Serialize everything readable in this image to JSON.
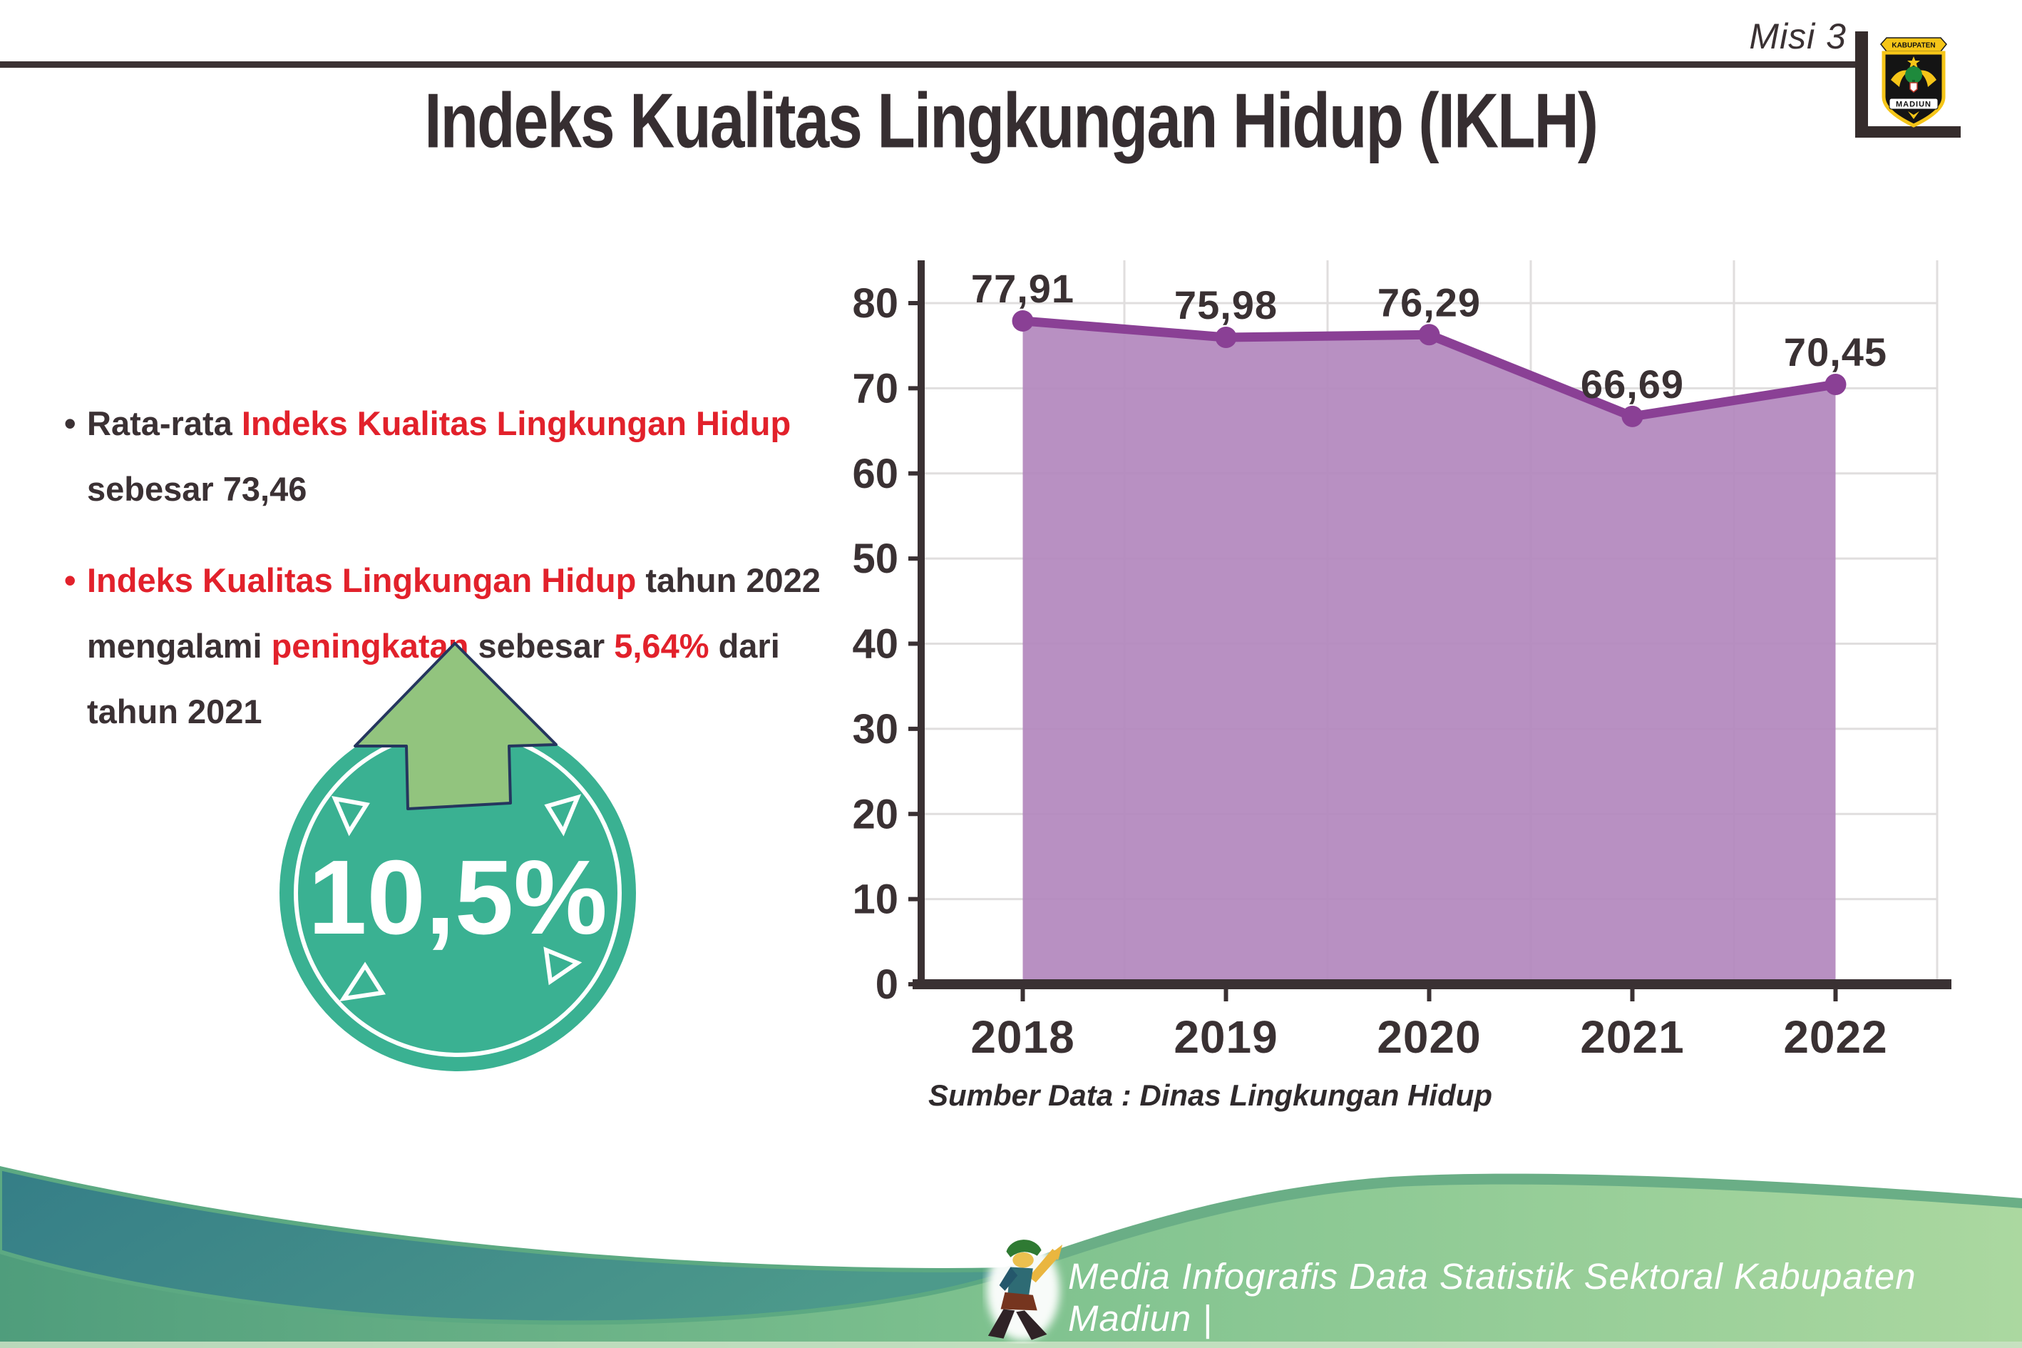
{
  "header": {
    "misi": "Misi 3",
    "logo_top": "KABUPATEN",
    "logo_bottom": "MADIUN"
  },
  "title": "Indeks Kualitas Lingkungan Hidup (IKLH)",
  "bullets": {
    "dot": "•",
    "b1": {
      "part1": "Rata-rata ",
      "part2": "Indeks Kualitas Lingkungan Hidup",
      "part3": "sebesar 73,46"
    },
    "b2": {
      "part1": "Indeks Kualitas Lingkungan Hidup",
      "part2": " tahun 2022",
      "part3": "mengalami ",
      "part4": "peningkatan",
      "part5": " sebesar ",
      "part6": "5,64%",
      "part7": " dari",
      "part8": "tahun 2021"
    }
  },
  "badge": {
    "value": "10,5%",
    "direction": "up"
  },
  "chart_data": {
    "type": "area",
    "title": "Indeks Kualitas Lingkungan Hidup (IKLH)",
    "categories": [
      "2018",
      "2019",
      "2020",
      "2021",
      "2022"
    ],
    "values": [
      77.91,
      75.98,
      76.29,
      66.69,
      70.45
    ],
    "point_labels": [
      "77,91",
      "75,98",
      "76,29",
      "66,69",
      "70,45"
    ],
    "xlabel": "",
    "ylabel": "",
    "ylim": [
      0,
      80
    ],
    "ytick_step": 10,
    "grid": true,
    "legend_position": "none",
    "source": "Sumber Data : Dinas Lingkungan Hidup",
    "colors": {
      "line": "#8a4095",
      "fill": "#b287bd",
      "axis": "#3a3133",
      "text": "#3a3133",
      "grid": "#e0dede"
    }
  },
  "footer": {
    "text": "Media Infografis Data Statistik Sektoral Kabupaten Madiun |"
  },
  "colors": {
    "accent_red": "#e2212b",
    "text_dark": "#3b3134",
    "badge_teal": "#3ab192",
    "arrow_green": "#92c47e",
    "footer_teal": "#357e87",
    "footer_green": "#7fc28f"
  }
}
